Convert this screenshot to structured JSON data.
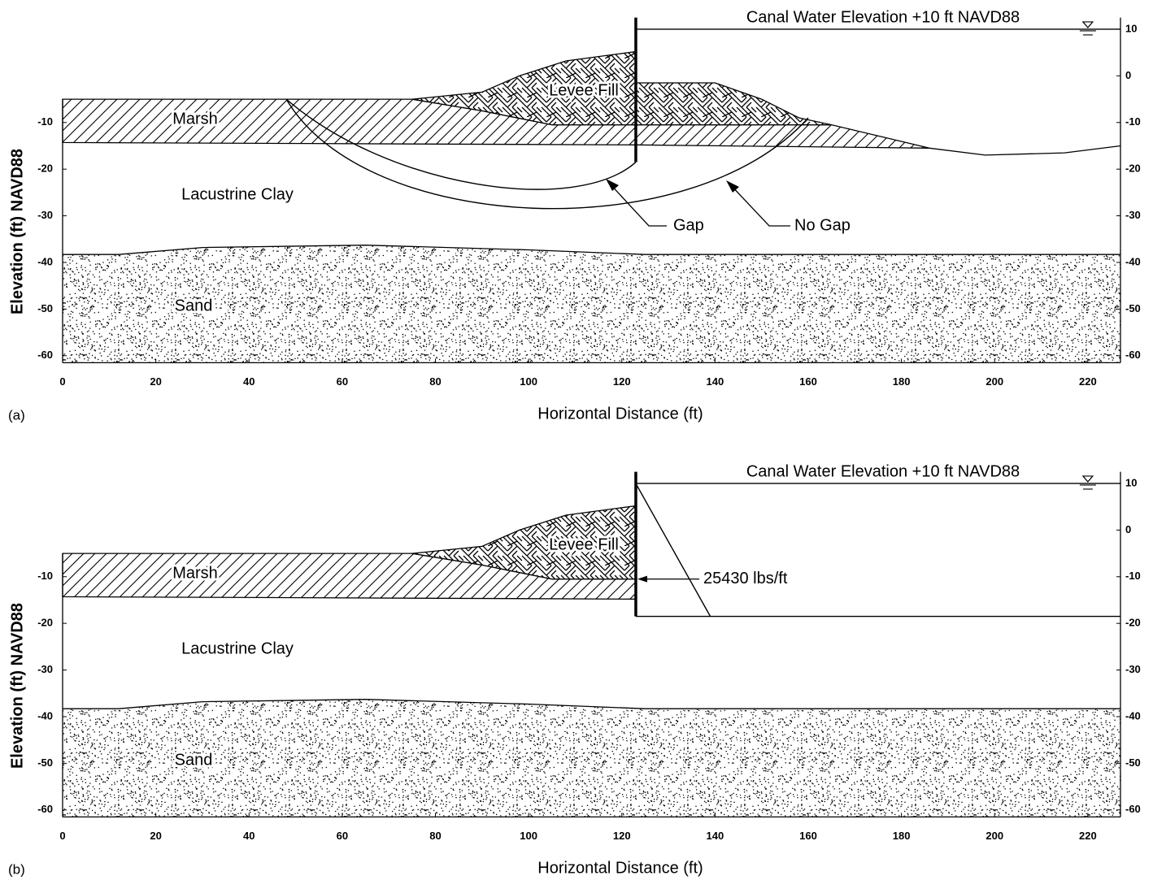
{
  "panels": [
    {
      "label": "(a)",
      "title": "Canal Water Elevation +10 ft NAVD88",
      "x_label": "Horizontal Distance (ft)",
      "y_label": "Elevation (ft) NAVD88",
      "layers": [
        "Marsh",
        "Lacustrine Clay",
        "Sand",
        "Levee Fill"
      ],
      "annotations": [
        "Gap",
        "No Gap"
      ],
      "xlim": [
        0,
        227
      ],
      "ylim": [
        -61.5,
        12.5
      ],
      "xticks": [
        0,
        20,
        40,
        60,
        80,
        100,
        120,
        140,
        160,
        180,
        200,
        220
      ],
      "yticks": [
        -60,
        -50,
        -40,
        -30,
        -20,
        -10
      ],
      "y2ticks": [
        -60,
        -50,
        -40,
        -30,
        -20,
        -10,
        0,
        10
      ]
    },
    {
      "label": "(b)",
      "title": "Canal Water Elevation +10 ft NAVD88",
      "x_label": "Horizontal Distance (ft)",
      "y_label": "Elevation (ft) NAVD88",
      "layers": [
        "Marsh",
        "Lacustrine Clay",
        "Sand",
        "Levee Fill"
      ],
      "annotations": [
        "25430 lbs/ft"
      ],
      "xlim": [
        0,
        227
      ],
      "ylim": [
        -61.5,
        12.5
      ],
      "xticks": [
        0,
        20,
        40,
        60,
        80,
        100,
        120,
        140,
        160,
        180,
        200,
        220
      ],
      "yticks": [
        -60,
        -50,
        -40,
        -30,
        -20,
        -10
      ],
      "y2ticks": [
        -60,
        -50,
        -40,
        -30,
        -20,
        -10,
        0,
        10
      ]
    }
  ]
}
